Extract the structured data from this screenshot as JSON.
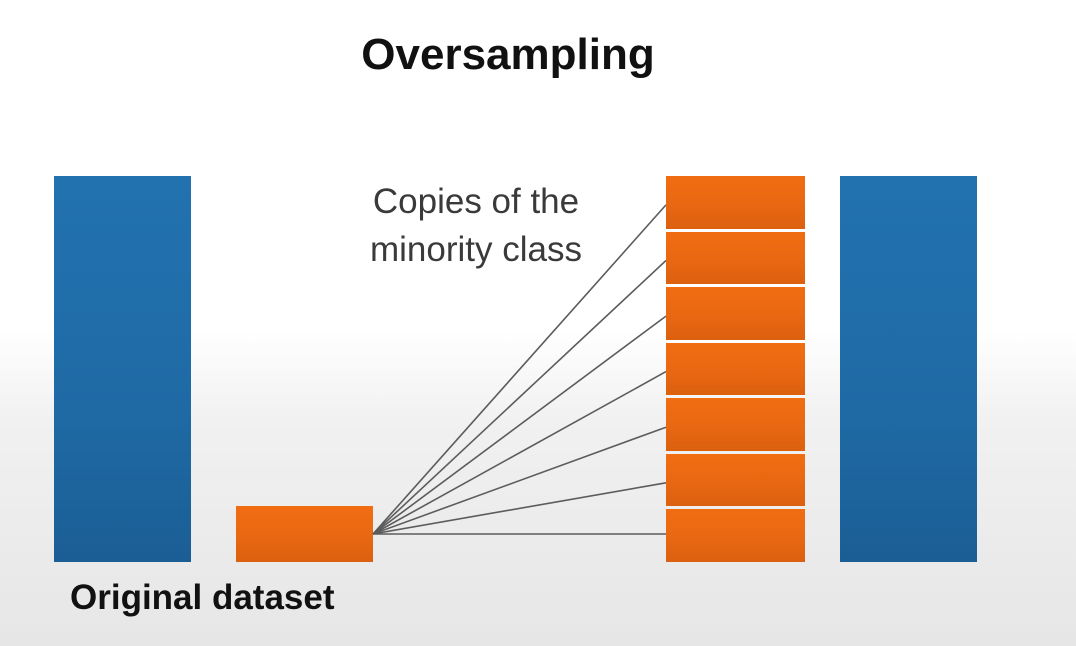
{
  "title": "Oversampling",
  "caption": {
    "line1": "Copies of the",
    "line2": "minority class"
  },
  "label": "Original dataset",
  "minority_copies": 7,
  "colors": {
    "majority": "#1f6aa5",
    "minority": "#ea6812",
    "connector": "#5c5c5c"
  }
}
